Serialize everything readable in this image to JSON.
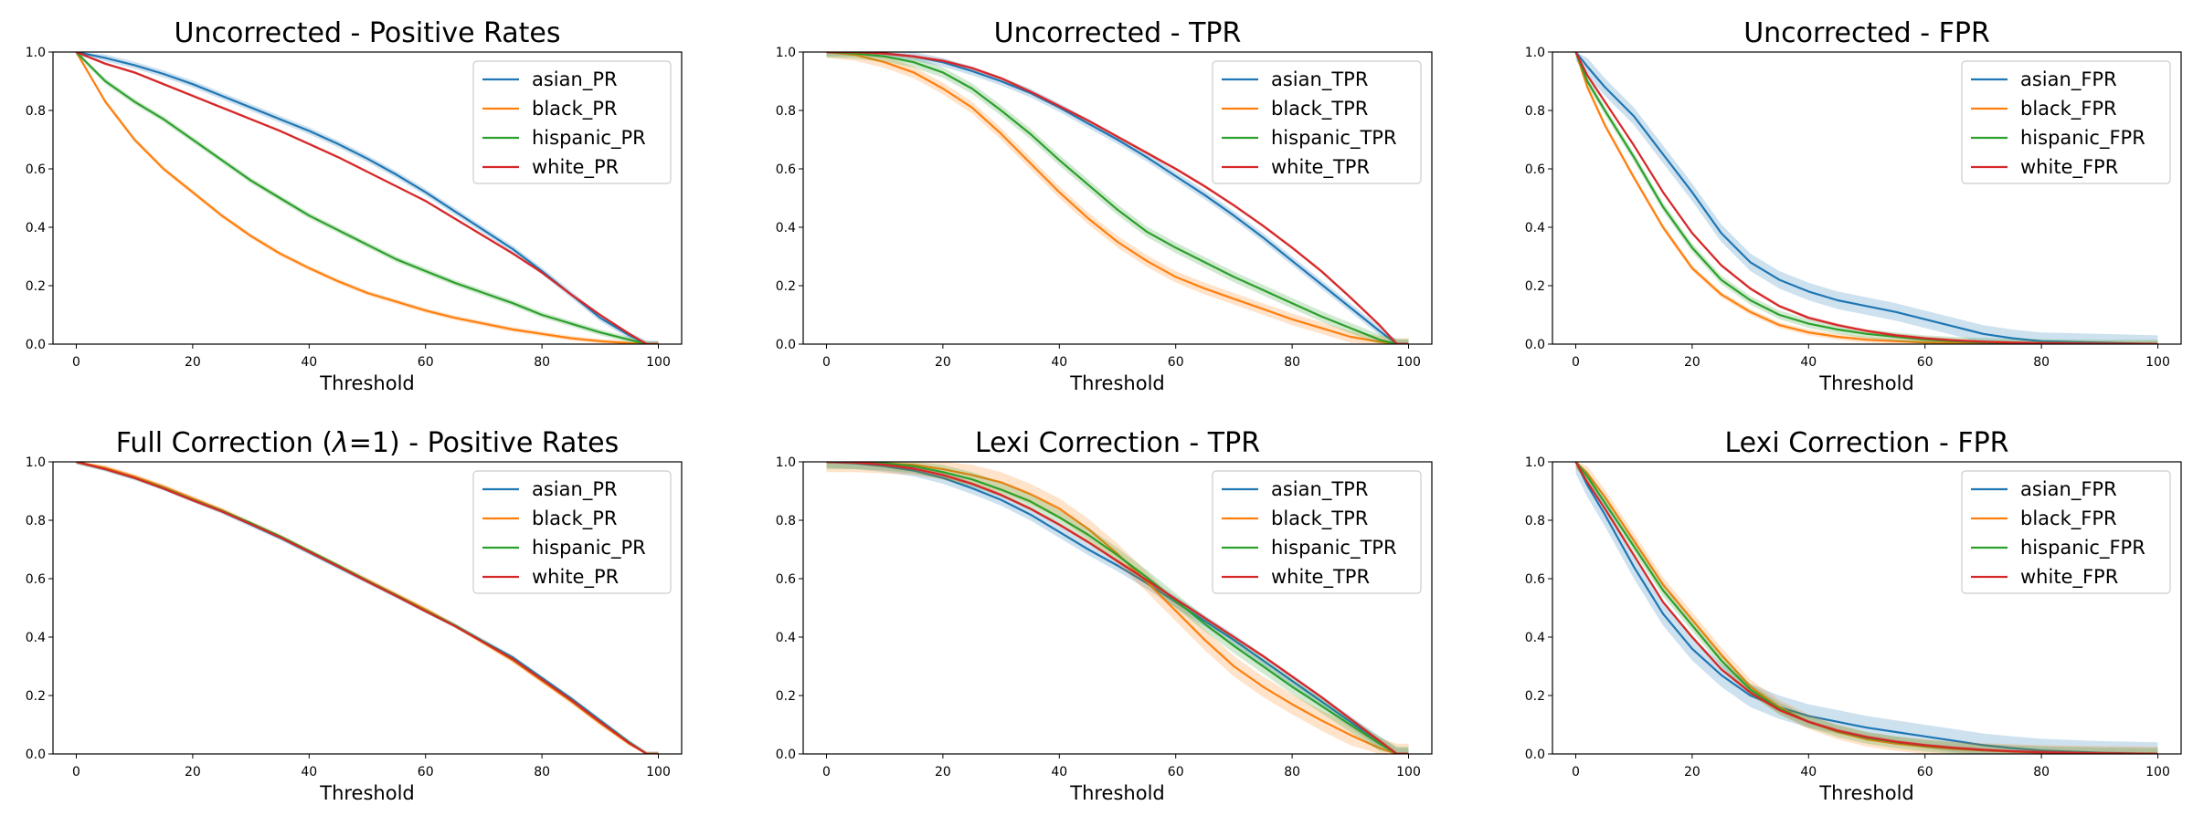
{
  "colors": {
    "asian": "#1f77b4",
    "black": "#ff7f0e",
    "hispanic": "#2ca02c",
    "white": "#d62728"
  },
  "chart_data": [
    {
      "type": "line",
      "title": "Uncorrected - Positive Rates",
      "xlabel": "Threshold",
      "ylabel": "",
      "xlim": [
        -4,
        104
      ],
      "ylim": [
        0,
        1
      ],
      "xticks": [
        "0",
        "20",
        "40",
        "60",
        "80",
        "100"
      ],
      "yticks": [
        "0.0",
        "0.2",
        "0.4",
        "0.6",
        "0.8",
        "1.0"
      ],
      "grid": false,
      "legend_position": "top-right",
      "x": [
        0,
        5,
        10,
        15,
        20,
        25,
        30,
        35,
        40,
        45,
        50,
        55,
        60,
        65,
        70,
        75,
        80,
        85,
        90,
        95,
        98,
        100
      ],
      "series": [
        {
          "name": "asian_PR",
          "color_key": "asian",
          "band": 0.012,
          "values": [
            1.0,
            0.98,
            0.955,
            0.925,
            0.89,
            0.85,
            0.81,
            0.77,
            0.73,
            0.685,
            0.635,
            0.58,
            0.52,
            0.455,
            0.39,
            0.325,
            0.25,
            0.17,
            0.09,
            0.03,
            0.0,
            0.0
          ]
        },
        {
          "name": "black_PR",
          "color_key": "black",
          "band": 0.008,
          "values": [
            1.0,
            0.83,
            0.7,
            0.6,
            0.52,
            0.44,
            0.37,
            0.31,
            0.26,
            0.215,
            0.175,
            0.145,
            0.115,
            0.09,
            0.07,
            0.05,
            0.035,
            0.02,
            0.01,
            0.003,
            0.0,
            0.0
          ]
        },
        {
          "name": "hispanic_PR",
          "color_key": "hispanic",
          "band": 0.01,
          "values": [
            1.0,
            0.9,
            0.83,
            0.77,
            0.7,
            0.63,
            0.56,
            0.5,
            0.44,
            0.39,
            0.34,
            0.29,
            0.25,
            0.21,
            0.175,
            0.14,
            0.1,
            0.07,
            0.04,
            0.015,
            0.0,
            0.0
          ]
        },
        {
          "name": "white_PR",
          "color_key": "white",
          "band": 0.005,
          "values": [
            1.0,
            0.96,
            0.93,
            0.89,
            0.85,
            0.81,
            0.77,
            0.73,
            0.685,
            0.64,
            0.59,
            0.54,
            0.49,
            0.43,
            0.37,
            0.31,
            0.245,
            0.17,
            0.1,
            0.035,
            0.0,
            0.0
          ]
        }
      ]
    },
    {
      "type": "line",
      "title": "Uncorrected - TPR",
      "xlabel": "Threshold",
      "ylabel": "",
      "xlim": [
        -4,
        104
      ],
      "ylim": [
        0,
        1
      ],
      "xticks": [
        "0",
        "20",
        "40",
        "60",
        "80",
        "100"
      ],
      "yticks": [
        "0.0",
        "0.2",
        "0.4",
        "0.6",
        "0.8",
        "1.0"
      ],
      "grid": false,
      "legend_position": "top-right",
      "x": [
        0,
        5,
        10,
        15,
        20,
        25,
        30,
        35,
        40,
        45,
        50,
        55,
        60,
        65,
        70,
        75,
        80,
        85,
        90,
        95,
        98,
        100
      ],
      "series": [
        {
          "name": "asian_TPR",
          "color_key": "asian",
          "band": 0.015,
          "values": [
            1.0,
            1.0,
            0.995,
            0.985,
            0.965,
            0.935,
            0.9,
            0.86,
            0.81,
            0.755,
            0.7,
            0.64,
            0.575,
            0.51,
            0.44,
            0.365,
            0.285,
            0.205,
            0.125,
            0.045,
            0.0,
            0.0
          ]
        },
        {
          "name": "black_TPR",
          "color_key": "black",
          "band": 0.02,
          "values": [
            1.0,
            0.99,
            0.965,
            0.93,
            0.875,
            0.81,
            0.72,
            0.62,
            0.52,
            0.43,
            0.35,
            0.285,
            0.23,
            0.19,
            0.155,
            0.12,
            0.085,
            0.055,
            0.025,
            0.008,
            0.0,
            0.0
          ]
        },
        {
          "name": "hispanic_TPR",
          "color_key": "hispanic",
          "band": 0.018,
          "values": [
            1.0,
            0.995,
            0.985,
            0.965,
            0.93,
            0.875,
            0.8,
            0.72,
            0.63,
            0.545,
            0.46,
            0.385,
            0.33,
            0.28,
            0.23,
            0.185,
            0.14,
            0.095,
            0.055,
            0.015,
            0.0,
            0.0
          ]
        },
        {
          "name": "white_TPR",
          "color_key": "white",
          "band": 0.006,
          "values": [
            1.0,
            1.0,
            0.995,
            0.985,
            0.97,
            0.945,
            0.91,
            0.865,
            0.815,
            0.765,
            0.71,
            0.655,
            0.6,
            0.54,
            0.475,
            0.405,
            0.33,
            0.25,
            0.16,
            0.065,
            0.0,
            0.0
          ]
        }
      ]
    },
    {
      "type": "line",
      "title": "Uncorrected - FPR",
      "xlabel": "Threshold",
      "ylabel": "",
      "xlim": [
        -4,
        104
      ],
      "ylim": [
        0,
        1
      ],
      "xticks": [
        "0",
        "20",
        "40",
        "60",
        "80",
        "100"
      ],
      "yticks": [
        "0.0",
        "0.2",
        "0.4",
        "0.6",
        "0.8",
        "1.0"
      ],
      "grid": false,
      "legend_position": "top-right",
      "x": [
        0,
        2,
        5,
        10,
        15,
        20,
        25,
        30,
        35,
        40,
        45,
        50,
        55,
        60,
        65,
        70,
        75,
        80,
        90,
        100
      ],
      "series": [
        {
          "name": "asian_FPR",
          "color_key": "asian",
          "band": 0.03,
          "values": [
            1.0,
            0.95,
            0.88,
            0.78,
            0.65,
            0.52,
            0.38,
            0.28,
            0.22,
            0.18,
            0.15,
            0.13,
            0.11,
            0.085,
            0.06,
            0.035,
            0.02,
            0.01,
            0.005,
            0.0
          ]
        },
        {
          "name": "black_FPR",
          "color_key": "black",
          "band": 0.01,
          "values": [
            1.0,
            0.88,
            0.75,
            0.57,
            0.4,
            0.26,
            0.17,
            0.11,
            0.065,
            0.04,
            0.025,
            0.015,
            0.01,
            0.006,
            0.004,
            0.002,
            0.001,
            0.0,
            0.0,
            0.0
          ]
        },
        {
          "name": "hispanic_FPR",
          "color_key": "hispanic",
          "band": 0.015,
          "values": [
            1.0,
            0.9,
            0.8,
            0.64,
            0.47,
            0.33,
            0.22,
            0.15,
            0.1,
            0.07,
            0.05,
            0.035,
            0.025,
            0.015,
            0.01,
            0.006,
            0.003,
            0.002,
            0.0,
            0.0
          ]
        },
        {
          "name": "white_FPR",
          "color_key": "white",
          "band": 0.006,
          "values": [
            1.0,
            0.92,
            0.83,
            0.68,
            0.52,
            0.38,
            0.27,
            0.19,
            0.13,
            0.09,
            0.065,
            0.045,
            0.03,
            0.02,
            0.013,
            0.008,
            0.005,
            0.003,
            0.001,
            0.0
          ]
        }
      ]
    },
    {
      "type": "line",
      "title": "Full Correction (λ=1) - Positive Rates",
      "title_parts": [
        "Full Correction (",
        "λ",
        "=1) - Positive Rates"
      ],
      "xlabel": "Threshold",
      "ylabel": "",
      "xlim": [
        -4,
        104
      ],
      "ylim": [
        0,
        1
      ],
      "xticks": [
        "0",
        "20",
        "40",
        "60",
        "80",
        "100"
      ],
      "yticks": [
        "0.0",
        "0.2",
        "0.4",
        "0.6",
        "0.8",
        "1.0"
      ],
      "grid": false,
      "legend_position": "top-right",
      "x": [
        0,
        5,
        10,
        15,
        20,
        25,
        30,
        35,
        40,
        45,
        50,
        55,
        60,
        65,
        70,
        75,
        80,
        85,
        90,
        95,
        98,
        100
      ],
      "series": [
        {
          "name": "asian_PR",
          "color_key": "asian",
          "band": 0.008,
          "values": [
            1.0,
            0.975,
            0.945,
            0.91,
            0.87,
            0.83,
            0.785,
            0.74,
            0.69,
            0.64,
            0.59,
            0.54,
            0.49,
            0.44,
            0.385,
            0.33,
            0.26,
            0.19,
            0.115,
            0.04,
            0.0,
            0.0
          ]
        },
        {
          "name": "black_PR",
          "color_key": "black",
          "band": 0.008,
          "values": [
            1.0,
            0.98,
            0.95,
            0.915,
            0.875,
            0.835,
            0.79,
            0.745,
            0.695,
            0.645,
            0.595,
            0.545,
            0.495,
            0.44,
            0.38,
            0.32,
            0.25,
            0.18,
            0.105,
            0.035,
            0.0,
            0.0
          ]
        },
        {
          "name": "hispanic_PR",
          "color_key": "hispanic",
          "band": 0.006,
          "values": [
            1.0,
            0.975,
            0.945,
            0.91,
            0.87,
            0.832,
            0.79,
            0.745,
            0.695,
            0.645,
            0.592,
            0.542,
            0.49,
            0.44,
            0.383,
            0.325,
            0.255,
            0.185,
            0.11,
            0.038,
            0.0,
            0.0
          ]
        },
        {
          "name": "white_PR",
          "color_key": "white",
          "band": 0.004,
          "values": [
            1.0,
            0.975,
            0.945,
            0.908,
            0.868,
            0.83,
            0.787,
            0.742,
            0.692,
            0.642,
            0.59,
            0.54,
            0.488,
            0.438,
            0.382,
            0.325,
            0.255,
            0.185,
            0.11,
            0.037,
            0.0,
            0.0
          ]
        }
      ]
    },
    {
      "type": "line",
      "title": "Lexi Correction - TPR",
      "xlabel": "Threshold",
      "ylabel": "",
      "xlim": [
        -4,
        104
      ],
      "ylim": [
        0,
        1
      ],
      "xticks": [
        "0",
        "20",
        "40",
        "60",
        "80",
        "100"
      ],
      "yticks": [
        "0.0",
        "0.2",
        "0.4",
        "0.6",
        "0.8",
        "1.0"
      ],
      "grid": false,
      "legend_position": "top-right",
      "x": [
        0,
        5,
        10,
        15,
        20,
        25,
        30,
        35,
        40,
        45,
        50,
        55,
        60,
        65,
        70,
        75,
        80,
        85,
        90,
        95,
        98,
        100
      ],
      "series": [
        {
          "name": "asian_TPR",
          "color_key": "asian",
          "band": 0.02,
          "values": [
            1.0,
            0.995,
            0.985,
            0.97,
            0.945,
            0.91,
            0.87,
            0.82,
            0.76,
            0.7,
            0.645,
            0.585,
            0.52,
            0.455,
            0.39,
            0.32,
            0.25,
            0.18,
            0.11,
            0.04,
            0.0,
            0.0
          ]
        },
        {
          "name": "black_TPR",
          "color_key": "black",
          "band": 0.035,
          "values": [
            1.0,
            1.0,
            0.995,
            0.99,
            0.975,
            0.955,
            0.93,
            0.89,
            0.84,
            0.77,
            0.685,
            0.59,
            0.49,
            0.39,
            0.3,
            0.23,
            0.17,
            0.115,
            0.065,
            0.02,
            0.0,
            0.0
          ]
        },
        {
          "name": "hispanic_TPR",
          "color_key": "hispanic",
          "band": 0.025,
          "values": [
            1.0,
            1.0,
            0.995,
            0.985,
            0.965,
            0.94,
            0.905,
            0.865,
            0.81,
            0.75,
            0.68,
            0.605,
            0.525,
            0.445,
            0.37,
            0.3,
            0.23,
            0.165,
            0.1,
            0.035,
            0.0,
            0.0
          ]
        },
        {
          "name": "white_TPR",
          "color_key": "white",
          "band": 0.006,
          "values": [
            1.0,
            0.998,
            0.99,
            0.977,
            0.955,
            0.925,
            0.887,
            0.84,
            0.785,
            0.725,
            0.66,
            0.595,
            0.53,
            0.465,
            0.4,
            0.335,
            0.265,
            0.195,
            0.12,
            0.045,
            0.0,
            0.0
          ]
        }
      ]
    },
    {
      "type": "line",
      "title": "Lexi Correction - FPR",
      "xlabel": "Threshold",
      "ylabel": "",
      "xlim": [
        -4,
        104
      ],
      "ylim": [
        0,
        1
      ],
      "xticks": [
        "0",
        "20",
        "40",
        "60",
        "80",
        "100"
      ],
      "yticks": [
        "0.0",
        "0.2",
        "0.4",
        "0.6",
        "0.8",
        "1.0"
      ],
      "grid": false,
      "legend_position": "top-right",
      "x": [
        0,
        2,
        5,
        10,
        15,
        20,
        25,
        30,
        35,
        40,
        45,
        50,
        55,
        60,
        65,
        70,
        75,
        80,
        90,
        100
      ],
      "series": [
        {
          "name": "asian_FPR",
          "color_key": "asian",
          "band": 0.04,
          "values": [
            1.0,
            0.92,
            0.82,
            0.64,
            0.48,
            0.36,
            0.27,
            0.2,
            0.16,
            0.13,
            0.11,
            0.09,
            0.075,
            0.06,
            0.045,
            0.03,
            0.02,
            0.012,
            0.004,
            0.0
          ]
        },
        {
          "name": "black_FPR",
          "color_key": "black",
          "band": 0.025,
          "values": [
            1.0,
            0.96,
            0.88,
            0.73,
            0.58,
            0.46,
            0.34,
            0.23,
            0.16,
            0.11,
            0.075,
            0.05,
            0.035,
            0.025,
            0.017,
            0.012,
            0.008,
            0.005,
            0.002,
            0.0
          ]
        },
        {
          "name": "hispanic_FPR",
          "color_key": "hispanic",
          "band": 0.02,
          "values": [
            1.0,
            0.95,
            0.86,
            0.71,
            0.56,
            0.44,
            0.32,
            0.22,
            0.155,
            0.11,
            0.078,
            0.055,
            0.04,
            0.028,
            0.02,
            0.013,
            0.009,
            0.006,
            0.002,
            0.0
          ]
        },
        {
          "name": "white_FPR",
          "color_key": "white",
          "band": 0.006,
          "values": [
            1.0,
            0.93,
            0.84,
            0.68,
            0.52,
            0.4,
            0.29,
            0.21,
            0.15,
            0.11,
            0.08,
            0.058,
            0.042,
            0.03,
            0.021,
            0.014,
            0.009,
            0.006,
            0.002,
            0.0
          ]
        }
      ]
    }
  ]
}
